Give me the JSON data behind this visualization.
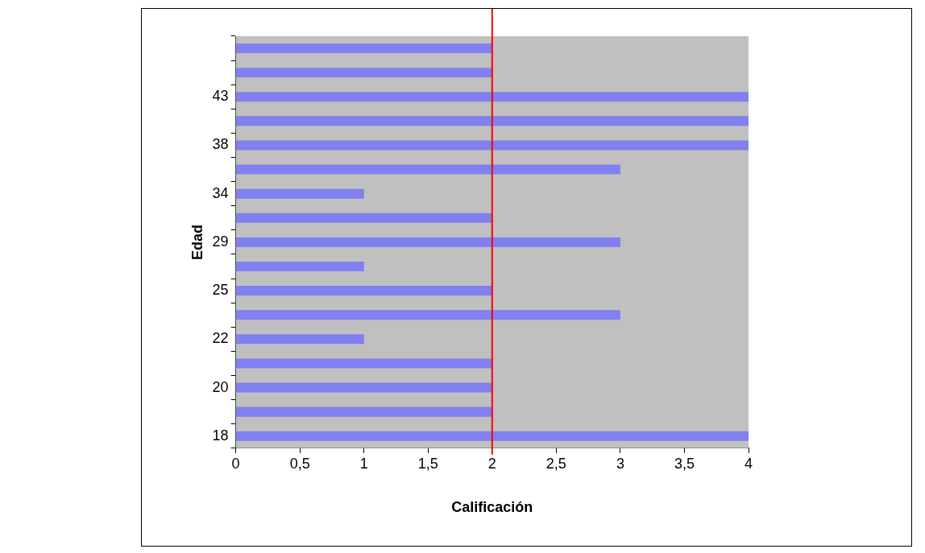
{
  "chart_data": {
    "type": "bar",
    "orientation": "horizontal",
    "xlabel": "Calificación",
    "ylabel": "Edad",
    "categories": [
      null,
      null,
      "43",
      null,
      "38",
      null,
      "34",
      null,
      "29",
      null,
      "25",
      null,
      "22",
      null,
      "20",
      null,
      "18"
    ],
    "values": [
      2,
      2,
      4,
      4,
      4,
      3,
      1,
      2,
      3,
      1,
      2,
      3,
      1,
      2,
      2,
      2,
      4
    ],
    "color": "#8080f0",
    "xlim": [
      0,
      4
    ],
    "xticks": [
      0,
      {
        "value": 0.5,
        "label": "0,5"
      },
      1,
      {
        "value": 1.5,
        "label": "1,5"
      },
      2,
      {
        "value": 2.5,
        "label": "2,5"
      },
      3,
      {
        "value": 3.5,
        "label": "3,5"
      },
      4
    ],
    "grid": false,
    "legend": false,
    "ref_lines": [
      {
        "axis": "x",
        "value": 2,
        "color": "#ff0000"
      }
    ]
  }
}
